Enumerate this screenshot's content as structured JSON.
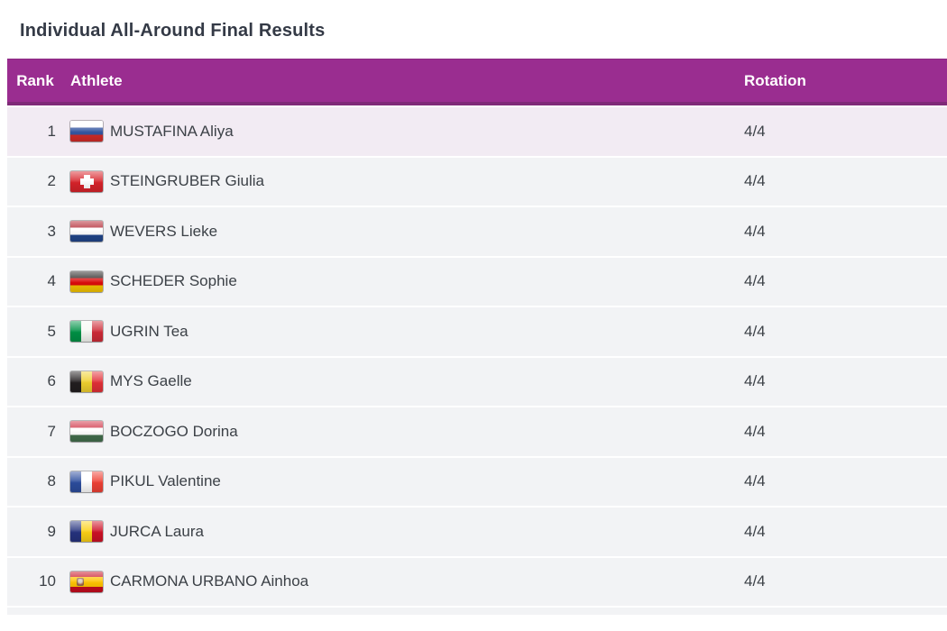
{
  "title": "Individual All-Around Final Results",
  "table": {
    "accent_color": "#9a2d90",
    "accent_border_color": "#7f2a78",
    "header_text_color": "#ffffff",
    "highlight_row_color": "#f2ebf3",
    "row_color": "#f2f3f5",
    "text_color": "#3c4147",
    "columns": {
      "rank": "Rank",
      "athlete": "Athlete",
      "rotation": "Rotation"
    },
    "rows": [
      {
        "rank": "1",
        "flag": "rus",
        "athlete": "MUSTAFINA Aliya",
        "rotation": "4/4",
        "highlighted": true
      },
      {
        "rank": "2",
        "flag": "sui",
        "athlete": "STEINGRUBER Giulia",
        "rotation": "4/4",
        "highlighted": false
      },
      {
        "rank": "3",
        "flag": "ned",
        "athlete": "WEVERS Lieke",
        "rotation": "4/4",
        "highlighted": false
      },
      {
        "rank": "4",
        "flag": "ger",
        "athlete": "SCHEDER Sophie",
        "rotation": "4/4",
        "highlighted": false
      },
      {
        "rank": "5",
        "flag": "ita",
        "athlete": "UGRIN Tea",
        "rotation": "4/4",
        "highlighted": false
      },
      {
        "rank": "6",
        "flag": "bel",
        "athlete": "MYS Gaelle",
        "rotation": "4/4",
        "highlighted": false
      },
      {
        "rank": "7",
        "flag": "hun",
        "athlete": "BOCZOGO Dorina",
        "rotation": "4/4",
        "highlighted": false
      },
      {
        "rank": "8",
        "flag": "fra",
        "athlete": "PIKUL Valentine",
        "rotation": "4/4",
        "highlighted": false
      },
      {
        "rank": "9",
        "flag": "rou",
        "athlete": "JURCA Laura",
        "rotation": "4/4",
        "highlighted": false
      },
      {
        "rank": "10",
        "flag": "esp",
        "athlete": "CARMONA URBANO Ainhoa",
        "rotation": "4/4",
        "highlighted": false
      }
    ]
  },
  "flags": {
    "rus": {
      "icon_name": "flag-russia-icon",
      "orientation": "horizontal",
      "stripes": [
        "#ffffff",
        "#3557a2",
        "#d32b28"
      ]
    },
    "sui": {
      "icon_name": "flag-switzerland-icon",
      "type": "cross",
      "field": "#d8232a",
      "cross": "#ffffff"
    },
    "ned": {
      "icon_name": "flag-netherlands-icon",
      "orientation": "horizontal",
      "stripes": [
        "#ae1c28",
        "#ffffff",
        "#21468b"
      ]
    },
    "ger": {
      "icon_name": "flag-germany-icon",
      "orientation": "horizontal",
      "stripes": [
        "#1f1d1b",
        "#dd0b0b",
        "#f5c400"
      ]
    },
    "ita": {
      "icon_name": "flag-italy-icon",
      "orientation": "vertical",
      "stripes": [
        "#009246",
        "#f7f9f4",
        "#ce2b37"
      ]
    },
    "bel": {
      "icon_name": "flag-belgium-icon",
      "orientation": "vertical",
      "stripes": [
        "#221e1f",
        "#f0d02f",
        "#e23037"
      ]
    },
    "hun": {
      "icon_name": "flag-hungary-icon",
      "orientation": "horizontal",
      "stripes": [
        "#cd2a3e",
        "#ffffff",
        "#436f4d"
      ]
    },
    "fra": {
      "icon_name": "flag-france-icon",
      "orientation": "vertical",
      "stripes": [
        "#2c4d9e",
        "#ffffff",
        "#ef4135"
      ]
    },
    "rou": {
      "icon_name": "flag-romania-icon",
      "orientation": "vertical",
      "stripes": [
        "#26337f",
        "#fcd116",
        "#ce1126"
      ]
    },
    "esp": {
      "icon_name": "flag-spain-icon",
      "orientation": "horizontal",
      "stripes": [
        "#c60b1e",
        "#ffc400",
        "#c60b1e"
      ],
      "weights": [
        0.27,
        0.46,
        0.27
      ],
      "emblem": true
    }
  }
}
